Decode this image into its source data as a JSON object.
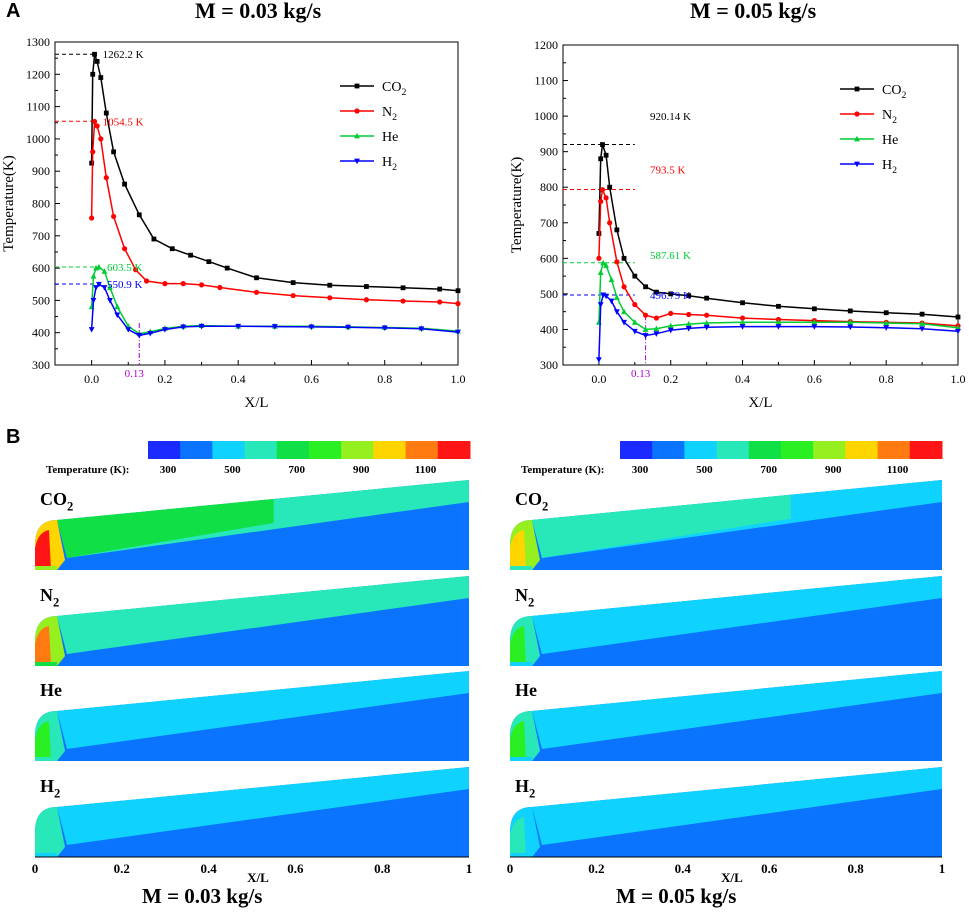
{
  "panels": {
    "a": "A",
    "b": "B"
  },
  "chart_data": [
    {
      "type": "line",
      "title": "M = 0.03 kg/s",
      "xlabel": "X/L",
      "ylabel": "Temperature(K)",
      "xlim": [
        -0.1,
        1.0
      ],
      "ylim": [
        300,
        1300
      ],
      "xticks": [
        "0.0",
        "0.2",
        "0.4",
        "0.6",
        "0.8",
        "1.0"
      ],
      "yticks": [
        "300",
        "400",
        "500",
        "600",
        "700",
        "800",
        "900",
        "1000",
        "1100",
        "1200",
        "1300"
      ],
      "series": [
        {
          "name": "CO2",
          "label_main": "CO",
          "label_sub": "2",
          "color": "#000000",
          "marker": "square",
          "x": [
            0,
            0.003,
            0.008,
            0.015,
            0.025,
            0.04,
            0.06,
            0.09,
            0.13,
            0.17,
            0.22,
            0.27,
            0.32,
            0.37,
            0.45,
            0.55,
            0.65,
            0.75,
            0.85,
            0.95,
            1.0
          ],
          "y": [
            925,
            1200,
            1262,
            1240,
            1190,
            1080,
            960,
            860,
            765,
            690,
            660,
            640,
            620,
            600,
            570,
            555,
            547,
            543,
            539,
            535,
            530
          ]
        },
        {
          "name": "N2",
          "label_main": "N",
          "label_sub": "2",
          "color": "#ff0000",
          "marker": "circle",
          "x": [
            0,
            0.003,
            0.008,
            0.015,
            0.025,
            0.04,
            0.06,
            0.09,
            0.12,
            0.15,
            0.2,
            0.25,
            0.3,
            0.35,
            0.45,
            0.55,
            0.65,
            0.75,
            0.85,
            0.95,
            1.0
          ],
          "y": [
            755,
            960,
            1054,
            1040,
            1000,
            880,
            760,
            660,
            595,
            560,
            552,
            552,
            548,
            540,
            525,
            515,
            508,
            502,
            498,
            495,
            490
          ]
        },
        {
          "name": "He",
          "label_main": "He",
          "label_sub": "",
          "color": "#00cc33",
          "marker": "triangle-up",
          "x": [
            0,
            0.005,
            0.012,
            0.02,
            0.035,
            0.05,
            0.07,
            0.1,
            0.13,
            0.16,
            0.2,
            0.25,
            0.3,
            0.4,
            0.5,
            0.6,
            0.7,
            0.8,
            0.9,
            1.0
          ],
          "y": [
            480,
            575,
            600,
            603,
            590,
            540,
            480,
            420,
            397,
            403,
            413,
            420,
            422,
            420,
            420,
            420,
            418,
            416,
            414,
            405
          ]
        },
        {
          "name": "H2",
          "label_main": "H",
          "label_sub": "2",
          "color": "#0000ff",
          "marker": "triangle-down",
          "x": [
            0,
            0.005,
            0.012,
            0.02,
            0.035,
            0.05,
            0.07,
            0.1,
            0.13,
            0.16,
            0.2,
            0.25,
            0.3,
            0.4,
            0.5,
            0.6,
            0.7,
            0.8,
            0.9,
            1.0
          ],
          "y": [
            410,
            500,
            540,
            550,
            540,
            500,
            455,
            410,
            392,
            398,
            410,
            418,
            420,
            420,
            419,
            418,
            417,
            415,
            412,
            402
          ]
        }
      ],
      "annotations": [
        {
          "text": "1262.2 K",
          "x": 0.008,
          "y": 1262.2,
          "color": "#000000"
        },
        {
          "text": "1054.5 K",
          "x": 0.008,
          "y": 1054.5,
          "color": "#ff0000"
        },
        {
          "text": "603.5 K",
          "x": 0.02,
          "y": 603.5,
          "color": "#00cc33"
        },
        {
          "text": "550.9 K",
          "x": 0.02,
          "y": 550.9,
          "color": "#0000ff"
        }
      ],
      "vmarker": {
        "x": 0.13,
        "label": "0.13",
        "color": "#aa00cc"
      },
      "legend": "top-right"
    },
    {
      "type": "line",
      "title": "M = 0.05 kg/s",
      "xlabel": "X/L",
      "ylabel": "Temperature(K)",
      "xlim": [
        -0.1,
        1.0
      ],
      "ylim": [
        300,
        1200
      ],
      "xticks": [
        "0.0",
        "0.2",
        "0.4",
        "0.6",
        "0.8",
        "1.0"
      ],
      "yticks": [
        "300",
        "400",
        "500",
        "600",
        "700",
        "800",
        "900",
        "1000",
        "1100",
        "1200"
      ],
      "series": [
        {
          "name": "CO2",
          "label_main": "CO",
          "label_sub": "2",
          "color": "#000000",
          "marker": "square",
          "x": [
            0,
            0.005,
            0.01,
            0.02,
            0.03,
            0.05,
            0.07,
            0.1,
            0.13,
            0.16,
            0.2,
            0.25,
            0.3,
            0.4,
            0.5,
            0.6,
            0.7,
            0.8,
            0.9,
            1.0
          ],
          "y": [
            670,
            880,
            920,
            890,
            800,
            680,
            600,
            550,
            520,
            505,
            500,
            495,
            488,
            475,
            465,
            458,
            452,
            447,
            443,
            435
          ]
        },
        {
          "name": "N2",
          "label_main": "N",
          "label_sub": "2",
          "color": "#ff0000",
          "marker": "circle",
          "x": [
            0,
            0.005,
            0.01,
            0.02,
            0.03,
            0.05,
            0.07,
            0.1,
            0.13,
            0.16,
            0.2,
            0.25,
            0.3,
            0.4,
            0.5,
            0.6,
            0.7,
            0.8,
            0.9,
            1.0
          ],
          "y": [
            600,
            760,
            793,
            770,
            700,
            590,
            520,
            470,
            440,
            432,
            445,
            442,
            440,
            432,
            428,
            425,
            422,
            420,
            418,
            410
          ]
        },
        {
          "name": "He",
          "label_main": "He",
          "label_sub": "",
          "color": "#00cc33",
          "marker": "triangle-up",
          "x": [
            0,
            0.005,
            0.012,
            0.02,
            0.035,
            0.05,
            0.07,
            0.1,
            0.13,
            0.16,
            0.2,
            0.25,
            0.3,
            0.4,
            0.5,
            0.6,
            0.7,
            0.8,
            0.9,
            1.0
          ],
          "y": [
            420,
            560,
            587,
            580,
            540,
            490,
            450,
            420,
            400,
            402,
            410,
            415,
            418,
            420,
            420,
            420,
            420,
            418,
            416,
            405
          ]
        },
        {
          "name": "H2",
          "label_main": "H",
          "label_sub": "2",
          "color": "#0000ff",
          "marker": "triangle-down",
          "x": [
            0,
            0.005,
            0.012,
            0.02,
            0.035,
            0.05,
            0.07,
            0.1,
            0.13,
            0.16,
            0.2,
            0.25,
            0.3,
            0.4,
            0.5,
            0.6,
            0.7,
            0.8,
            0.9,
            1.0
          ],
          "y": [
            315,
            470,
            497,
            494,
            480,
            450,
            420,
            395,
            383,
            388,
            398,
            403,
            406,
            408,
            408,
            408,
            407,
            405,
            402,
            395
          ]
        }
      ],
      "annotations": [
        {
          "text": "920.14 K",
          "x": 0.12,
          "y": 1000,
          "color": "#000000"
        },
        {
          "text": "793.5 K",
          "x": 0.12,
          "y": 850,
          "color": "#ff0000"
        },
        {
          "text": "587.61 K",
          "x": 0.12,
          "y": 610,
          "color": "#00cc33"
        },
        {
          "text": "496.79 K",
          "x": 0.12,
          "y": 497,
          "color": "#0000ff"
        }
      ],
      "refline_values": [
        920.14,
        793.5,
        587.61,
        496.79
      ],
      "vmarker": {
        "x": 0.13,
        "label": "0.13",
        "color": "#aa00cc"
      },
      "legend": "top-right"
    }
  ],
  "contours": {
    "colorbar_label": "Temperature (K):",
    "colorbar_ticks": [
      "300",
      "500",
      "700",
      "900",
      "1100"
    ],
    "colorbar_colors": [
      "#1b2bff",
      "#0a74ff",
      "#0fd2ff",
      "#28e7b8",
      "#10e046",
      "#2aef22",
      "#96f020",
      "#ffd500",
      "#ff7a10",
      "#ff1515"
    ],
    "xlabel": "X/L",
    "xticks": [
      "0",
      "0.2",
      "0.4",
      "0.6",
      "0.8",
      "1"
    ],
    "rows_labels": [
      {
        "main": "CO",
        "sub": "2"
      },
      {
        "main": "N",
        "sub": "2"
      },
      {
        "main": "He",
        "sub": ""
      },
      {
        "main": "H",
        "sub": "2"
      }
    ],
    "left_title": "M = 0.03 kg/s",
    "right_title": "M = 0.05 kg/s"
  }
}
